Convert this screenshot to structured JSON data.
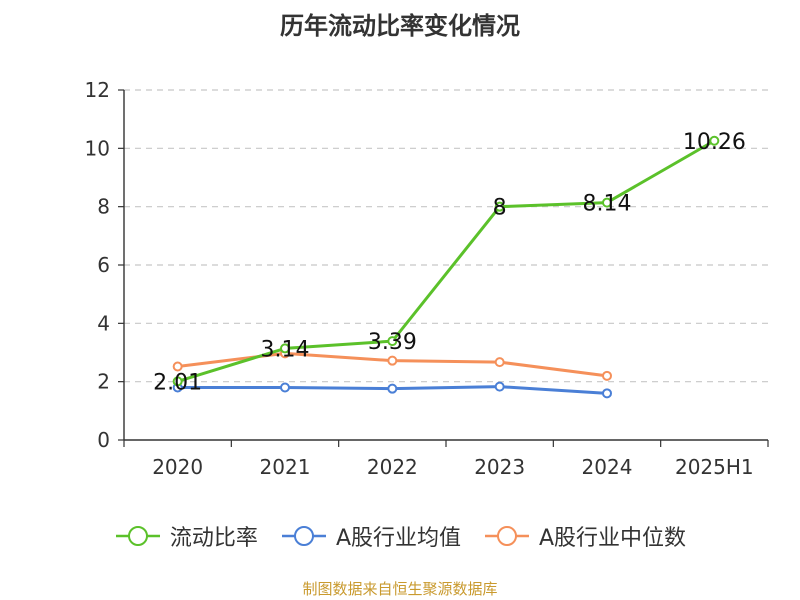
{
  "title": "历年流动比率变化情况",
  "source": "制图数据来自恒生聚源数据库",
  "chart_data": {
    "type": "line",
    "title": "历年流动比率变化情况",
    "categories": [
      "2020",
      "2021",
      "2022",
      "2023",
      "2024",
      "2025H1"
    ],
    "ylim": [
      0,
      12
    ],
    "yticks": [
      0,
      2,
      4,
      6,
      8,
      10,
      12
    ],
    "grid": true,
    "legend_position": "bottom",
    "series": [
      {
        "name": "流动比率",
        "color": "#5bc12a",
        "values": [
          2.01,
          3.14,
          3.39,
          8,
          8.14,
          10.26
        ],
        "labels": [
          "2.01",
          "3.14",
          "3.39",
          "8",
          "8.14",
          "10.26"
        ]
      },
      {
        "name": "A股行业均值",
        "color": "#4a7fd6",
        "values": [
          1.8,
          1.8,
          1.76,
          1.83,
          1.6,
          null
        ]
      },
      {
        "name": "A股行业中位数",
        "color": "#f5905a",
        "values": [
          2.52,
          2.97,
          2.72,
          2.67,
          2.2,
          null
        ]
      }
    ]
  }
}
